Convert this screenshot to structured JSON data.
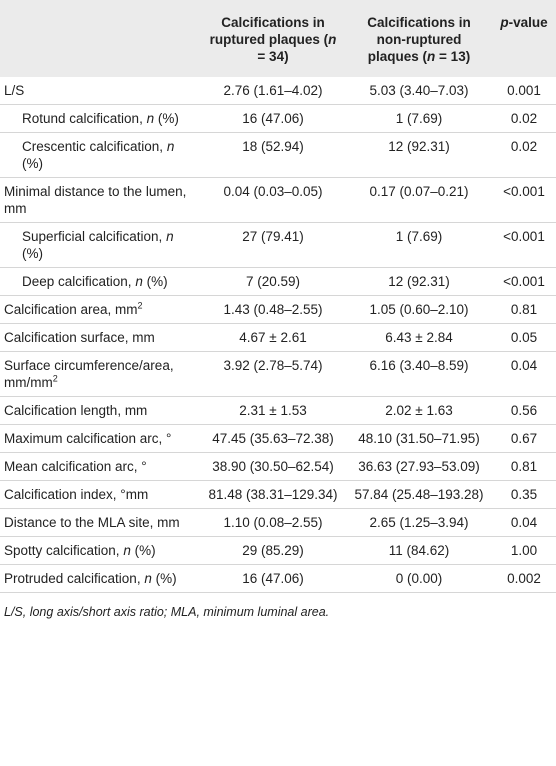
{
  "table": {
    "columns": [
      [
        [
          "Calcifications in ruptured plaques ("
        ],
        [
          {
            "text": "n",
            "style": "italic"
          }
        ],
        [
          " = 34)"
        ]
      ],
      [
        [
          "Calcifications in non-ruptured plaques ("
        ],
        [
          {
            "text": "n",
            "style": "italic"
          }
        ],
        [
          " = 13)"
        ]
      ],
      [
        [
          {
            "text": "p",
            "style": "italic"
          }
        ],
        [
          "-value"
        ]
      ]
    ],
    "rows": [
      {
        "label": [
          "L/S"
        ],
        "cells": [
          "2.76 (1.61–4.02)",
          "5.03 (3.40–7.03)",
          "0.001"
        ]
      },
      {
        "indent": true,
        "label": [
          "Rotund calcification, ",
          {
            "text": "n",
            "style": "italic"
          },
          " (%)"
        ],
        "cells": [
          "16 (47.06)",
          "1 (7.69)",
          "0.02"
        ]
      },
      {
        "indent": true,
        "label": [
          "Crescentic calcification, ",
          {
            "text": "n",
            "style": "italic"
          },
          " (%)"
        ],
        "cells": [
          "18 (52.94)",
          "12 (92.31)",
          "0.02"
        ]
      },
      {
        "label": [
          "Minimal distance to the lumen, mm"
        ],
        "cells": [
          "0.04 (0.03–0.05)",
          "0.17 (0.07–0.21)",
          "<0.001"
        ]
      },
      {
        "indent": true,
        "label": [
          "Superficial calcification, ",
          {
            "text": "n",
            "style": "italic"
          },
          " (%)"
        ],
        "cells": [
          "27 (79.41)",
          "1 (7.69)",
          "<0.001"
        ]
      },
      {
        "indent": true,
        "label": [
          "Deep calcification, ",
          {
            "text": "n",
            "style": "italic"
          },
          " (%)"
        ],
        "cells": [
          "7 (20.59)",
          "12 (92.31)",
          "<0.001"
        ]
      },
      {
        "label": [
          "Calcification area, mm",
          {
            "text": "2",
            "style": "sup"
          }
        ],
        "cells": [
          "1.43 (0.48–2.55)",
          "1.05 (0.60–2.10)",
          "0.81"
        ]
      },
      {
        "label": [
          "Calcification surface, mm"
        ],
        "cells": [
          "4.67 ± 2.61",
          "6.43 ± 2.84",
          "0.05"
        ]
      },
      {
        "label": [
          "Surface circumference/area, mm/mm",
          {
            "text": "2",
            "style": "sup"
          }
        ],
        "cells": [
          "3.92 (2.78–5.74)",
          "6.16 (3.40–8.59)",
          "0.04"
        ]
      },
      {
        "label": [
          "Calcification length, mm"
        ],
        "cells": [
          "2.31 ± 1.53",
          "2.02 ± 1.63",
          "0.56"
        ]
      },
      {
        "label": [
          "Maximum calcification arc, °"
        ],
        "cells": [
          "47.45 (35.63–72.38)",
          "48.10 (31.50–71.95)",
          "0.67"
        ]
      },
      {
        "label": [
          "Mean calcification arc, °"
        ],
        "cells": [
          "38.90 (30.50–62.54)",
          "36.63 (27.93–53.09)",
          "0.81"
        ]
      },
      {
        "label": [
          "Calcification index, °mm"
        ],
        "cells": [
          "81.48 (38.31–129.34)",
          "57.84 (25.48–193.28)",
          "0.35"
        ]
      },
      {
        "label": [
          "Distance to the MLA site, mm"
        ],
        "cells": [
          "1.10 (0.08–2.55)",
          "2.65 (1.25–3.94)",
          "0.04"
        ]
      },
      {
        "label": [
          "Spotty calcification, ",
          {
            "text": "n",
            "style": "italic"
          },
          " (%)"
        ],
        "cells": [
          "29 (85.29)",
          "11 (84.62)",
          "1.00"
        ]
      },
      {
        "label": [
          "Protruded calcification, ",
          {
            "text": "n",
            "style": "italic"
          },
          " (%)"
        ],
        "cells": [
          "16 (47.06)",
          "0 (0.00)",
          "0.002"
        ]
      }
    ],
    "footnote": "L/S, long axis/short axis ratio; MLA, minimum luminal area."
  }
}
